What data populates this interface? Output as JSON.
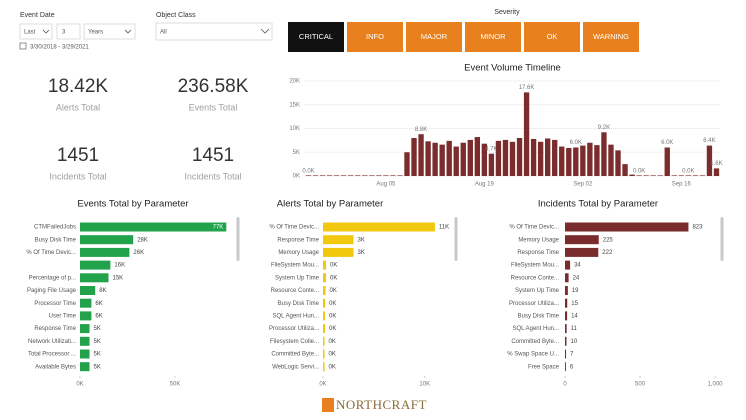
{
  "filters": {
    "event_date_label": "Event Date",
    "period": "Last",
    "count": "3",
    "unit": "Years",
    "date_range": "3/30/2018 - 3/29/2021",
    "object_class_label": "Object Class",
    "object_class": "All"
  },
  "severity": {
    "label": "Severity",
    "options": [
      {
        "label": "CRITICAL",
        "color": "#111111",
        "text_color": "#ffffff"
      },
      {
        "label": "INFO",
        "color": "#e8801e",
        "text_color": "#ffffff"
      },
      {
        "label": "MAJOR",
        "color": "#e8801e",
        "text_color": "#ffffff"
      },
      {
        "label": "MINOR",
        "color": "#e8801e",
        "text_color": "#ffffff"
      },
      {
        "label": "OK",
        "color": "#e8801e",
        "text_color": "#ffffff"
      },
      {
        "label": "WARNING",
        "color": "#e8801e",
        "text_color": "#ffffff"
      }
    ]
  },
  "kpis": [
    {
      "value": "18.42K",
      "label": "Alerts Total"
    },
    {
      "value": "236.58K",
      "label": "Events Total"
    },
    {
      "value": "1451",
      "label": "Incidents Total"
    },
    {
      "value": "1451",
      "label": "Incidents Total"
    }
  ],
  "chart_data": [
    {
      "type": "bar",
      "orientation": "vertical",
      "title": "Event Volume Timeline",
      "color": "#7b2c2c",
      "grid": true,
      "categories": [
        null,
        null,
        null,
        null,
        null,
        null,
        null,
        null,
        null,
        null,
        null,
        "Aug 05",
        null,
        null,
        null,
        null,
        null,
        null,
        null,
        null,
        null,
        null,
        null,
        null,
        null,
        "Aug 19",
        null,
        null,
        null,
        null,
        null,
        null,
        null,
        null,
        null,
        null,
        null,
        null,
        null,
        "Sep 02",
        null,
        null,
        null,
        null,
        null,
        null,
        null,
        null,
        null,
        null,
        null,
        null,
        null,
        "Sep 16",
        null,
        null,
        null,
        null,
        null
      ],
      "values": [
        0,
        0,
        0,
        0,
        0,
        0,
        0,
        0,
        0,
        0,
        0,
        0,
        0,
        0,
        5000,
        8000,
        8800,
        7300,
        7000,
        6600,
        7400,
        6200,
        7000,
        7600,
        8200,
        6800,
        4700,
        7400,
        7600,
        7200,
        8000,
        17600,
        7800,
        7200,
        7900,
        7600,
        6200,
        5900,
        6000,
        6400,
        7000,
        6500,
        9200,
        6600,
        5400,
        2500,
        300,
        0,
        0,
        0,
        0,
        6000,
        0,
        0,
        0,
        0,
        0,
        6400,
        1600
      ],
      "value_labels": [
        "0.0K",
        null,
        null,
        null,
        null,
        null,
        null,
        null,
        null,
        null,
        null,
        null,
        null,
        null,
        null,
        null,
        "8.8K",
        null,
        null,
        null,
        null,
        null,
        null,
        null,
        null,
        null,
        "4.7K",
        null,
        null,
        null,
        null,
        "17.6K",
        null,
        null,
        null,
        null,
        null,
        null,
        "6.0K",
        null,
        null,
        null,
        "9.2K",
        null,
        null,
        null,
        null,
        "0.0K",
        null,
        null,
        null,
        "6.0K",
        null,
        null,
        "0.0K",
        null,
        null,
        "6.4K",
        "1.6K"
      ],
      "ylim": [
        0,
        20000
      ],
      "yticks": [
        {
          "value": 0,
          "label": "0K"
        },
        {
          "value": 5000,
          "label": "5K"
        },
        {
          "value": 10000,
          "label": "10K"
        },
        {
          "value": 15000,
          "label": "15K"
        },
        {
          "value": 20000,
          "label": "20K"
        }
      ]
    },
    {
      "type": "bar",
      "orientation": "horizontal",
      "title": "Events Total by Parameter",
      "color": "#21a24b",
      "categories": [
        "CTMFailedJobs",
        "Busy Disk Time",
        "% Of Time Devic...",
        null,
        "Percentage of p...",
        "Paging File Usage",
        "Processor Time",
        "User Time",
        "Response Time",
        "Network Utilizati...",
        "Total Processor ...",
        "Available Bytes"
      ],
      "values": [
        77000,
        28000,
        26000,
        16000,
        15000,
        8000,
        6000,
        6000,
        5000,
        5000,
        5000,
        5000
      ],
      "value_labels": [
        "77K",
        "28K",
        "26K",
        "16K",
        "15K",
        "8K",
        "6K",
        "6K",
        "5K",
        "5K",
        "5K",
        "5K"
      ],
      "xlim": [
        0,
        80000
      ],
      "xticks": [
        {
          "value": 0,
          "label": "0K"
        },
        {
          "value": 50000,
          "label": "50K"
        }
      ]
    },
    {
      "type": "bar",
      "orientation": "horizontal",
      "title": "Alerts Total by Parameter",
      "color": "#f2c80f",
      "categories": [
        "% Of Time Devic...",
        "Response Time",
        "Memory Usage",
        "FileSystem Mou...",
        "System Up Time",
        "Resource Conte...",
        "Busy Disk Time",
        "SQL Agent Hun...",
        "Processor Utiliza...",
        "Filesystem Colle...",
        "Committed Byte...",
        "WebLogic Servi..."
      ],
      "values": [
        11000,
        3000,
        3000,
        300,
        300,
        250,
        200,
        200,
        200,
        150,
        150,
        150
      ],
      "value_labels": [
        "11K",
        "3K",
        "3K",
        "0K",
        "0K",
        "0K",
        "0K",
        "0K",
        "0K",
        "0K",
        "0K",
        "0K"
      ],
      "xlim": [
        0,
        11500
      ],
      "xticks": [
        {
          "value": 0,
          "label": "0K"
        },
        {
          "value": 10000,
          "label": "10K"
        }
      ]
    },
    {
      "type": "bar",
      "orientation": "horizontal",
      "title": "Incidents Total by Parameter",
      "color": "#7a2b2b",
      "categories": [
        "% Of Time Devic...",
        "Memory Usage",
        "Response Time",
        "FileSystem Mou...",
        "Resource Conte...",
        "System Up Time",
        "Processor Utiliza...",
        "Busy Disk Time",
        "SQL Agent Hun...",
        "Committed Byte...",
        "% Swap Space U...",
        "Free Space"
      ],
      "values": [
        823,
        225,
        222,
        34,
        24,
        19,
        15,
        14,
        11,
        10,
        7,
        6
      ],
      "xlim": [
        0,
        1000
      ],
      "xticks": [
        0,
        500,
        {
          "value": 1000,
          "label": "1,000"
        }
      ]
    }
  ],
  "logo": "NORTHCRAFT"
}
